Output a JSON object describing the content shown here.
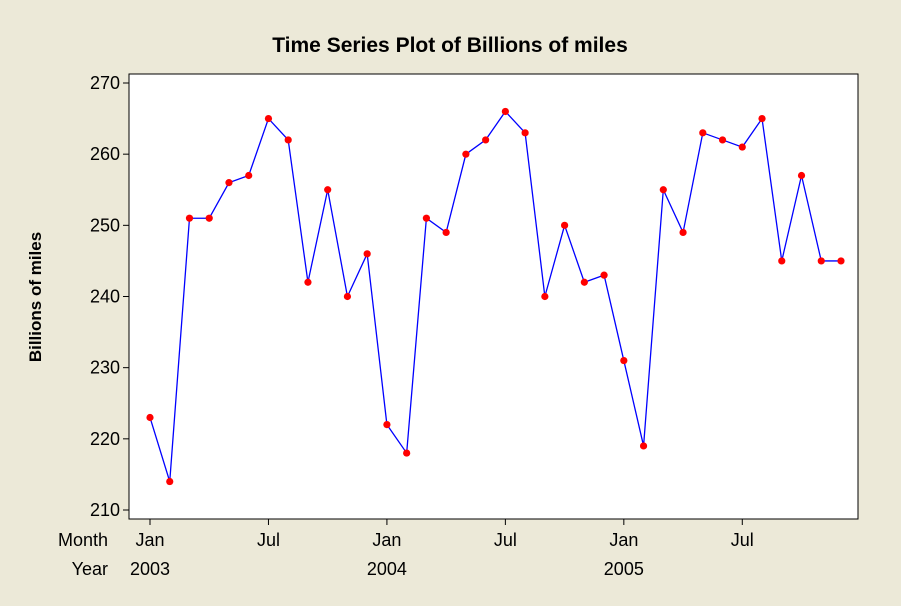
{
  "chart_data": {
    "type": "line",
    "title": "Time Series Plot of Billions of miles",
    "xlabel": "",
    "ylabel": "Billions of miles",
    "ylim": [
      210,
      270
    ],
    "yticks": [
      210,
      220,
      230,
      240,
      250,
      260,
      270
    ],
    "x_axis_row_labels": {
      "month": "Month",
      "year": "Year"
    },
    "x_ticks": [
      {
        "index": 0,
        "month": "Jan",
        "year": "2003"
      },
      {
        "index": 6,
        "month": "Jul",
        "year": ""
      },
      {
        "index": 12,
        "month": "Jan",
        "year": "2004"
      },
      {
        "index": 18,
        "month": "Jul",
        "year": ""
      },
      {
        "index": 24,
        "month": "Jan",
        "year": "2005"
      },
      {
        "index": 30,
        "month": "Jul",
        "year": ""
      }
    ],
    "series": [
      {
        "name": "Billions of miles",
        "line_color": "#0000ff",
        "marker_color": "#ff0000",
        "values": [
          223,
          214,
          251,
          251,
          256,
          257,
          265,
          262,
          242,
          255,
          240,
          246,
          222,
          218,
          251,
          249,
          260,
          262,
          266,
          263,
          240,
          250,
          242,
          243,
          231,
          219,
          255,
          249,
          263,
          262,
          261,
          265,
          245,
          257,
          245,
          245
        ]
      }
    ],
    "grid": false,
    "plot_background": "#ffffff",
    "figure_background": "#ece9d8"
  }
}
